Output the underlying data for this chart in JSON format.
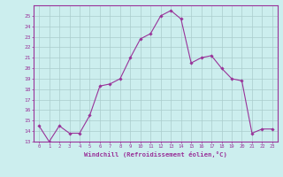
{
  "x": [
    0,
    1,
    2,
    3,
    4,
    5,
    6,
    7,
    8,
    9,
    10,
    11,
    12,
    13,
    14,
    15,
    16,
    17,
    18,
    19,
    20,
    21,
    22,
    23
  ],
  "y": [
    14.5,
    13.0,
    14.5,
    13.8,
    13.8,
    15.5,
    18.3,
    18.5,
    19.0,
    21.0,
    22.8,
    23.3,
    25.0,
    25.5,
    24.7,
    20.5,
    21.0,
    21.2,
    20.0,
    19.0,
    18.8,
    13.8,
    14.2,
    14.2
  ],
  "line_color": "#993399",
  "marker_color": "#993399",
  "bg_color": "#cceeee",
  "grid_color": "#aacccc",
  "xlabel": "Windchill (Refroidissement éolien,°C)",
  "ylim": [
    13,
    26
  ],
  "xlim": [
    -0.5,
    23.5
  ],
  "yticks": [
    13,
    14,
    15,
    16,
    17,
    18,
    19,
    20,
    21,
    22,
    23,
    24,
    25
  ],
  "xticks": [
    0,
    1,
    2,
    3,
    4,
    5,
    6,
    7,
    8,
    9,
    10,
    11,
    12,
    13,
    14,
    15,
    16,
    17,
    18,
    19,
    20,
    21,
    22,
    23
  ],
  "tick_label_color": "#993399",
  "axis_label_color": "#993399"
}
